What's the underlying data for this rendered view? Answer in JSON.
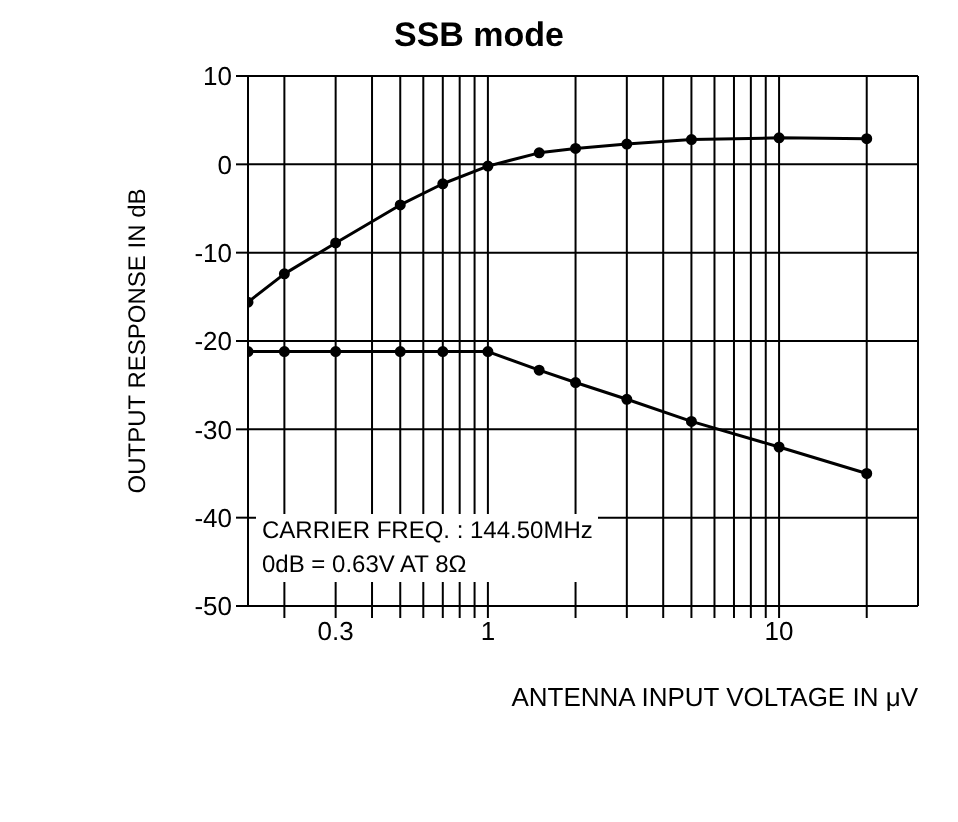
{
  "chart_data": {
    "type": "line",
    "title": "SSB mode",
    "xlabel": "ANTENNA INPUT VOLTAGE IN μV",
    "ylabel": "OUTPUT RESPONSE IN dB",
    "x": [
      0.15,
      0.2,
      0.3,
      0.5,
      0.7,
      1,
      1.5,
      2,
      3,
      5,
      10,
      20
    ],
    "series": [
      {
        "color": "#000000",
        "values": [
          -15.6,
          -12.4,
          -8.9,
          -4.6,
          -2.2,
          -0.2,
          1.3,
          1.8,
          2.3,
          2.8,
          3.0,
          2.9
        ]
      },
      {
        "color": "#000000",
        "values": [
          -21.2,
          -21.2,
          -21.2,
          -21.2,
          -21.2,
          -21.2,
          -23.3,
          -24.7,
          -26.6,
          -29.1,
          -32.0,
          -35.0
        ]
      }
    ],
    "log": "x",
    "xlim": [
      0.15,
      30
    ],
    "xticks": [
      {
        "value": 0.2,
        "label": null
      },
      0.3,
      {
        "value": 0.4,
        "label": null
      },
      {
        "value": 0.5,
        "label": null
      },
      {
        "value": 0.6,
        "label": null
      },
      {
        "value": 0.7,
        "label": null
      },
      {
        "value": 0.8,
        "label": null
      },
      {
        "value": 0.9,
        "label": null
      },
      1,
      {
        "value": 2,
        "label": null
      },
      {
        "value": 3,
        "label": null
      },
      {
        "value": 4,
        "label": null
      },
      {
        "value": 5,
        "label": null
      },
      {
        "value": 6,
        "label": null
      },
      {
        "value": 7,
        "label": null
      },
      {
        "value": 8,
        "label": null
      },
      {
        "value": 9,
        "label": null
      },
      10,
      {
        "value": 20,
        "label": null
      }
    ],
    "ylim": [
      -50,
      10
    ],
    "yticks": [
      -50,
      -40,
      -30,
      -20,
      -10,
      0,
      10
    ],
    "grid": true,
    "legend": false,
    "marker": "circle",
    "line_style": "solid",
    "annotations": [
      "CARRIER FREQ. : 144.50MHz",
      "0dB = 0.63V AT 8Ω"
    ]
  }
}
